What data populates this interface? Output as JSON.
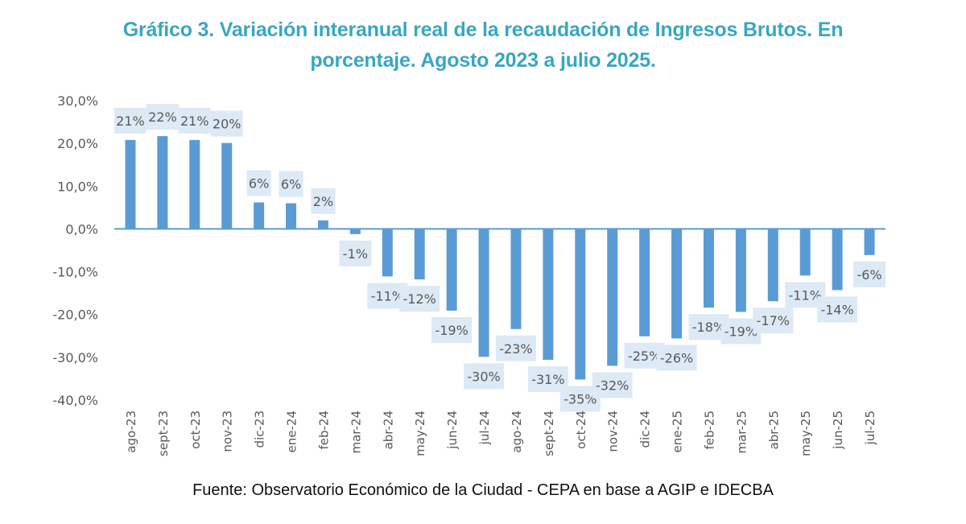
{
  "title_line1": "Gráfico 3. Variación interanual real de la recaudación de Ingresos Brutos. En",
  "title_line2": "porcentaje. Agosto 2023 a julio 2025.",
  "source": "Fuente: Observatorio Económico de la Ciudad - CEPA en base a AGIP e IDECBA",
  "colors": {
    "bar": "#5b9bd5",
    "label_bg": "#dde9f5",
    "title": "#3aa6c2",
    "axis_text": "#595959",
    "zero_line": "#5b9bd5"
  },
  "chart_data": {
    "type": "bar",
    "title": "Gráfico 3. Variación interanual real de la recaudación de Ingresos Brutos. En porcentaje. Agosto 2023 a julio 2025.",
    "xlabel": "",
    "ylabel": "",
    "ylim": [
      -40,
      30
    ],
    "yticks": [
      30,
      20,
      10,
      0,
      -10,
      -20,
      -30,
      -40
    ],
    "ytick_labels": [
      "30,0%",
      "20,0%",
      "10,0%",
      "0,0%",
      "-10,0%",
      "-20,0%",
      "-30,0%",
      "-40,0%"
    ],
    "grid": false,
    "legend": "none",
    "categories": [
      "ago-23",
      "sept-23",
      "oct-23",
      "nov-23",
      "dic-23",
      "ene-24",
      "feb-24",
      "mar-24",
      "abr-24",
      "may-24",
      "jun-24",
      "jul-24",
      "ago-24",
      "sept-24",
      "oct-24",
      "nov-24",
      "dic-24",
      "ene-25",
      "feb-25",
      "mar-25",
      "abr-25",
      "may-25",
      "jun-25",
      "jul-25"
    ],
    "values": [
      20.8,
      21.7,
      20.8,
      20.1,
      6.2,
      6.0,
      2.0,
      -1.2,
      -11.1,
      -11.8,
      -19.1,
      -29.9,
      -23.4,
      -30.6,
      -35.2,
      -32.0,
      -25.1,
      -25.6,
      -18.4,
      -19.4,
      -16.9,
      -10.9,
      -14.3,
      -6.1
    ],
    "data_labels": [
      "21%",
      "22%",
      "21%",
      "20%",
      "6%",
      "6%",
      "2%",
      "-1%",
      "-11%",
      "-12%",
      "-19%",
      "-30%",
      "-23%",
      "-31%",
      "-35%",
      "-32%",
      "-25%",
      "-26%",
      "-18%",
      "-19%",
      "-17%",
      "-11%",
      "-14%",
      "-6%"
    ]
  }
}
